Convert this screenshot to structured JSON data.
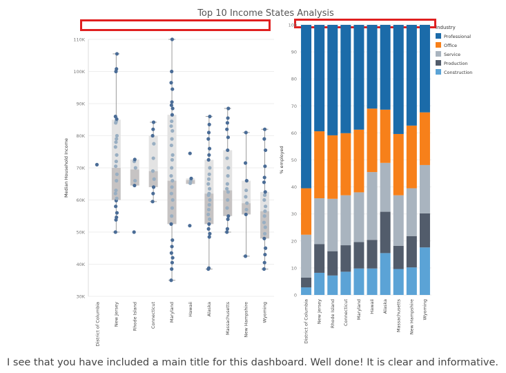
{
  "page": {
    "caption": "I see that you have included a main title for this dashboard. Well done! It is clear and informative."
  },
  "chart_data": [
    {
      "type": "box",
      "title": "Top 10 Income States Analysis",
      "ylabel": "Median Household Income",
      "ylim": [
        30000,
        110000
      ],
      "yticks": [
        "30K",
        "40K",
        "50K",
        "60K",
        "70K",
        "80K",
        "90K",
        "100K",
        "110K"
      ],
      "categories": [
        "District of Columbia",
        "New Jersey",
        "Rhode Island",
        "Connecticut",
        "Maryland",
        "Hawaii",
        "Alaska",
        "Massachusetts",
        "New Hampshire",
        "Wyoming"
      ],
      "boxes": [
        {
          "q1": 71000,
          "median": 71000,
          "q3": 71000,
          "min": 71000,
          "max": 71000,
          "points": [
            71000
          ]
        },
        {
          "q1": 60000,
          "median": 70000,
          "q3": 85000,
          "min": 50000,
          "max": 105500,
          "points": [
            50000,
            53800,
            54600,
            56000,
            58000,
            59800,
            60500,
            62000,
            63000,
            66000,
            68000,
            70500,
            72000,
            74000,
            76500,
            78000,
            79000,
            80000,
            84000,
            84500,
            85200,
            86000,
            100000,
            100800,
            105500
          ]
        },
        {
          "q1": 64500,
          "median": 69500,
          "q3": 72600,
          "min": 64500,
          "max": 72600,
          "points": [
            50000,
            64500,
            66000,
            70000,
            72000,
            72600
          ]
        },
        {
          "q1": 64000,
          "median": 69000,
          "q3": 80000,
          "min": 59500,
          "max": 84200,
          "points": [
            59500,
            62000,
            64000,
            66500,
            69000,
            73000,
            77500,
            80000,
            82000,
            84200
          ]
        },
        {
          "q1": 52500,
          "median": 66000,
          "q3": 86500,
          "min": 35000,
          "max": 110000,
          "points": [
            35000,
            38500,
            40500,
            42000,
            43500,
            45500,
            47500,
            52500,
            55000,
            57500,
            60000,
            62000,
            64000,
            66000,
            67500,
            70000,
            72500,
            74000,
            77000,
            79000,
            81500,
            83000,
            84500,
            86500,
            88500,
            89500,
            90500,
            94500,
            96500,
            100000,
            110000
          ]
        },
        {
          "q1": 65000,
          "median": 66200,
          "q3": 66700,
          "min": 65000,
          "max": 66700,
          "points": [
            52000,
            65200,
            66000,
            66700,
            74500
          ]
        },
        {
          "q1": 52500,
          "median": 62000,
          "q3": 72500,
          "min": 38500,
          "max": 86000,
          "points": [
            38500,
            38800,
            48500,
            49500,
            51000,
            52500,
            54000,
            55500,
            57000,
            58500,
            60000,
            61500,
            62000,
            63500,
            65000,
            66500,
            68000,
            70000,
            72500,
            74000,
            76000,
            79000,
            81000,
            83500,
            86000
          ]
        },
        {
          "q1": 55000,
          "median": 63000,
          "q3": 75500,
          "min": 50000,
          "max": 88500,
          "points": [
            50000,
            51000,
            54000,
            55000,
            57500,
            60000,
            62500,
            63500,
            65000,
            67500,
            70000,
            73000,
            75500,
            79500,
            82000,
            84000,
            85500,
            88500
          ]
        },
        {
          "q1": 55500,
          "median": 59000,
          "q3": 66000,
          "min": 42500,
          "max": 81000,
          "points": [
            42500,
            55500,
            57000,
            59000,
            61000,
            63000,
            66000,
            71500,
            81000
          ]
        },
        {
          "q1": 48000,
          "median": 56500,
          "q3": 62500,
          "min": 38500,
          "max": 82000,
          "points": [
            38500,
            40500,
            43000,
            45000,
            48000,
            49500,
            51500,
            53000,
            55000,
            56500,
            58000,
            60000,
            61500,
            62500,
            65500,
            67000,
            70500,
            75500,
            79000,
            82000
          ]
        }
      ]
    },
    {
      "type": "stacked-bar",
      "ylabel": "% employed",
      "ylim": [
        0,
        100
      ],
      "yticks": [
        "0",
        "10",
        "20",
        "30",
        "40",
        "50",
        "60",
        "70",
        "80",
        "90",
        "100"
      ],
      "legend_title": "Industry",
      "categories": [
        "District of Columbia",
        "New Jersey",
        "Rhode Island",
        "Connecticut",
        "Maryland",
        "Hawaii",
        "Alaska",
        "Massachusetts",
        "New Hampshire",
        "Wyoming"
      ],
      "series": [
        {
          "name": "Construction",
          "color": "#5ba3d6",
          "values": [
            2.8,
            8.2,
            7.2,
            8.6,
            9.8,
            9.8,
            15.5,
            9.6,
            10.2,
            17.6
          ]
        },
        {
          "name": "Production",
          "color": "#525c6b",
          "values": [
            3.6,
            10.6,
            9.0,
            9.8,
            9.8,
            10.6,
            15.3,
            8.6,
            11.6,
            12.6
          ]
        },
        {
          "name": "Service",
          "color": "#a9b4bf",
          "values": [
            15.9,
            17.0,
            19.4,
            18.5,
            18.4,
            25.1,
            18.1,
            18.7,
            17.7,
            17.9
          ]
        },
        {
          "name": "Office",
          "color": "#f7801a",
          "values": [
            17.2,
            24.8,
            23.5,
            23.0,
            23.2,
            23.5,
            19.7,
            22.7,
            23.2,
            19.5
          ]
        },
        {
          "name": "Professional",
          "color": "#1b6ba9",
          "values": [
            60.5,
            39.4,
            40.9,
            40.1,
            38.8,
            31.0,
            31.4,
            40.4,
            37.3,
            32.4
          ]
        }
      ]
    }
  ]
}
